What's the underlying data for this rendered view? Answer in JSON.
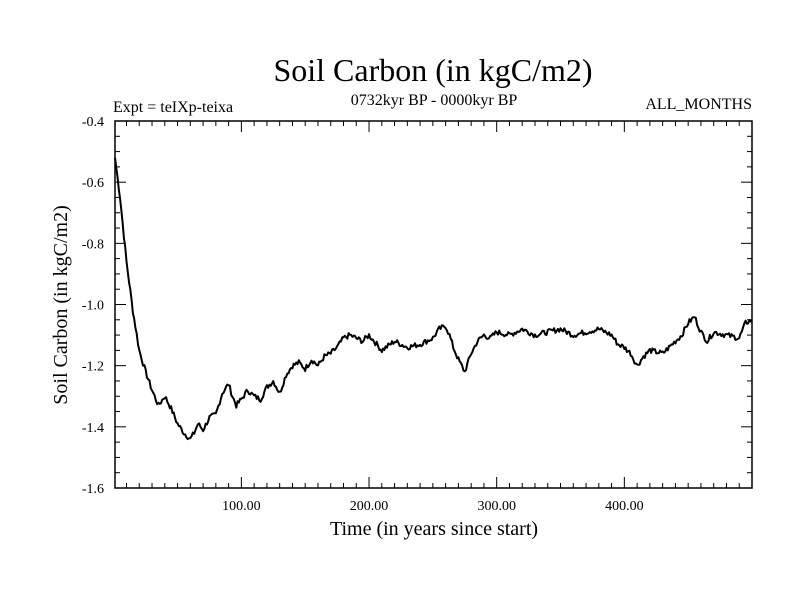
{
  "chart_data": {
    "type": "line",
    "title": "Soil Carbon (in kgC/m2)",
    "subtitle_left": "Expt = teIXp-teixa",
    "subtitle_center": "0732kyr BP - 0000kyr BP",
    "subtitle_right": "ALL_MONTHS",
    "xlabel": "Time (in years since start)",
    "ylabel": "Soil Carbon (in kgC/m2)",
    "xlim": [
      1,
      500
    ],
    "ylim": [
      -1.6,
      -0.4
    ],
    "x_ticks": [
      100,
      200,
      300,
      400
    ],
    "x_tick_labels": [
      "100.00",
      "200.00",
      "300.00",
      "400.00"
    ],
    "y_ticks": [
      -1.6,
      -1.4,
      -1.2,
      -1.0,
      -0.8,
      -0.6,
      -0.4
    ],
    "y_tick_labels": [
      "-1.6",
      "-1.4",
      "-1.2",
      "-1.0",
      "-0.8",
      "-0.6",
      "-0.4"
    ],
    "grid": false,
    "series": [
      {
        "name": "Soil Carbon",
        "x": [
          1,
          5,
          10,
          15,
          20,
          25,
          30,
          35,
          40,
          45,
          50,
          55,
          60,
          63,
          66,
          70,
          75,
          80,
          85,
          90,
          93,
          96,
          100,
          105,
          110,
          115,
          120,
          125,
          130,
          135,
          140,
          145,
          150,
          155,
          160,
          165,
          170,
          175,
          180,
          185,
          190,
          195,
          200,
          210,
          220,
          230,
          240,
          250,
          255,
          260,
          263,
          266,
          270,
          275,
          280,
          285,
          290,
          295,
          300,
          310,
          320,
          330,
          340,
          350,
          360,
          370,
          380,
          390,
          395,
          400,
          405,
          410,
          415,
          420,
          430,
          440,
          445,
          450,
          455,
          460,
          465,
          470,
          480,
          490,
          495,
          500
        ],
        "y": [
          -0.52,
          -0.65,
          -0.86,
          -1.02,
          -1.15,
          -1.22,
          -1.28,
          -1.33,
          -1.3,
          -1.34,
          -1.39,
          -1.42,
          -1.44,
          -1.42,
          -1.39,
          -1.41,
          -1.37,
          -1.36,
          -1.29,
          -1.26,
          -1.3,
          -1.33,
          -1.31,
          -1.28,
          -1.3,
          -1.31,
          -1.27,
          -1.25,
          -1.29,
          -1.23,
          -1.2,
          -1.19,
          -1.21,
          -1.18,
          -1.2,
          -1.17,
          -1.16,
          -1.14,
          -1.11,
          -1.1,
          -1.11,
          -1.12,
          -1.1,
          -1.15,
          -1.12,
          -1.14,
          -1.13,
          -1.11,
          -1.08,
          -1.07,
          -1.1,
          -1.14,
          -1.18,
          -1.22,
          -1.16,
          -1.12,
          -1.1,
          -1.11,
          -1.09,
          -1.1,
          -1.08,
          -1.1,
          -1.09,
          -1.08,
          -1.1,
          -1.09,
          -1.08,
          -1.1,
          -1.13,
          -1.14,
          -1.16,
          -1.2,
          -1.17,
          -1.15,
          -1.16,
          -1.12,
          -1.1,
          -1.06,
          -1.04,
          -1.09,
          -1.12,
          -1.09,
          -1.1,
          -1.11,
          -1.06,
          -1.05
        ]
      }
    ]
  }
}
